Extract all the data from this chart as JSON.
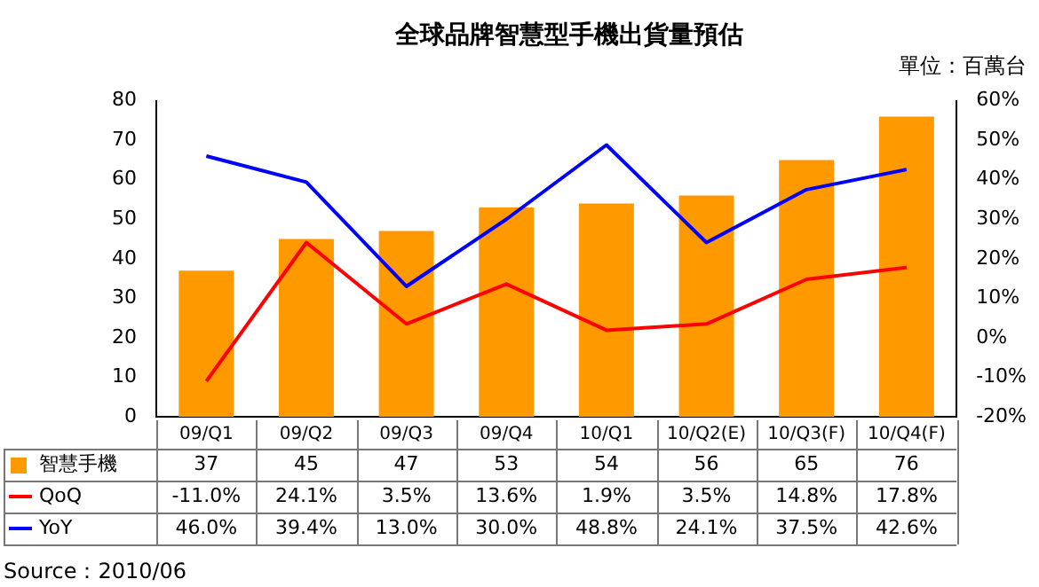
{
  "chart_data": {
    "type": "bar",
    "title": "全球品牌智慧型手機出貨量預估",
    "categories": [
      "09/Q1",
      "09/Q2",
      "09/Q3",
      "09/Q4",
      "10/Q1",
      "10/Q2(E)",
      "10/Q3(F)",
      "10/Q4(F)"
    ],
    "series": [
      {
        "name": "智慧手機",
        "color": "#ff9900",
        "values": [
          37,
          45,
          47,
          53,
          54,
          56,
          65,
          76
        ],
        "value_labels": [
          "37",
          "45",
          "47",
          "53",
          "54",
          "56",
          "65",
          "76"
        ]
      },
      {
        "name": "QoQ",
        "type": "line",
        "axis": "y2",
        "color": "#ff0000",
        "values": [
          -11.0,
          24.1,
          3.5,
          13.6,
          1.9,
          3.5,
          14.8,
          17.8
        ],
        "value_labels": [
          "-11.0%",
          "24.1%",
          "3.5%",
          "13.6%",
          "1.9%",
          "3.5%",
          "14.8%",
          "17.8%"
        ]
      },
      {
        "name": "YoY",
        "type": "line",
        "axis": "y2",
        "color": "#0000ff",
        "values": [
          46.0,
          39.4,
          13.0,
          30.0,
          48.8,
          24.1,
          37.5,
          42.6
        ],
        "value_labels": [
          "46.0%",
          "39.4%",
          "13.0%",
          "30.0%",
          "48.8%",
          "24.1%",
          "37.5%",
          "42.6%"
        ]
      }
    ],
    "ylim": [
      0,
      80
    ],
    "yticks": [
      0,
      10,
      20,
      30,
      40,
      50,
      60,
      70,
      80
    ],
    "y2lim": [
      -20,
      60
    ],
    "y2ticks": [
      {
        "value": -20,
        "label": "-20%"
      },
      {
        "value": -10,
        "label": "-10%"
      },
      {
        "value": 0,
        "label": "0%"
      },
      {
        "value": 10,
        "label": "10%"
      },
      {
        "value": 20,
        "label": "20%"
      },
      {
        "value": 30,
        "label": "30%"
      },
      {
        "value": 40,
        "label": "40%"
      },
      {
        "value": 50,
        "label": "50%"
      },
      {
        "value": 60,
        "label": "60%"
      }
    ],
    "grid": false,
    "legend": "bottom",
    "marker": "none",
    "line_style": "solid",
    "annotations": [
      "單位：百萬台",
      "Source：2010/06"
    ]
  }
}
